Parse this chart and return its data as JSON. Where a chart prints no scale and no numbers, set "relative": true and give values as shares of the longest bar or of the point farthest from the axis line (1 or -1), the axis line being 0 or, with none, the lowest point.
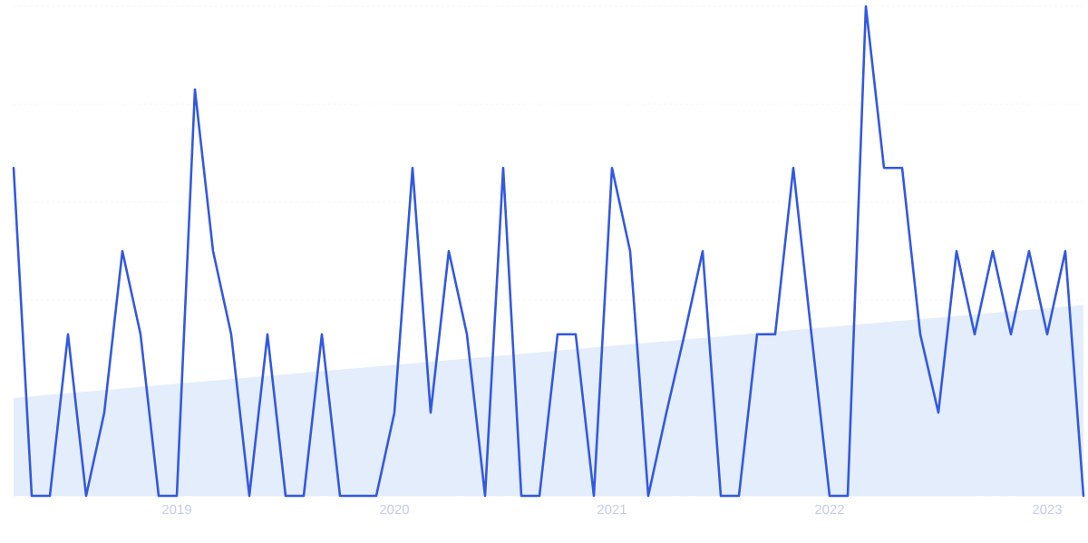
{
  "chart_data": {
    "type": "line",
    "relative": true,
    "grid": "y",
    "marker": "none",
    "line_style": "solid",
    "xlim": [
      "2018-04",
      "2023-03"
    ],
    "xticks": [
      {
        "value": "2019-01",
        "label": "2019"
      },
      {
        "value": "2020-01",
        "label": "2020"
      },
      {
        "value": "2021-01",
        "label": "2021"
      },
      {
        "value": "2022-01",
        "label": "2022"
      },
      {
        "value": "2023-01",
        "label": "2023"
      }
    ],
    "series": [
      {
        "type": "area",
        "color": "#e3edfb",
        "x": [
          "2018-04",
          "2023-03"
        ],
        "values": [
          0.2,
          0.39
        ]
      },
      {
        "color": "#3358e0",
        "x": [
          "2018-04",
          "2018-05",
          "2018-06",
          "2018-07",
          "2018-08",
          "2018-09",
          "2018-10",
          "2018-11",
          "2018-12",
          "2019-01",
          "2019-02",
          "2019-03",
          "2019-04",
          "2019-05",
          "2019-06",
          "2019-07",
          "2019-08",
          "2019-09",
          "2019-10",
          "2019-11",
          "2019-12",
          "2020-01",
          "2020-02",
          "2020-03",
          "2020-04",
          "2020-05",
          "2020-06",
          "2020-07",
          "2020-08",
          "2020-09",
          "2020-10",
          "2020-11",
          "2020-12",
          "2021-01",
          "2021-02",
          "2021-03",
          "2021-04",
          "2021-05",
          "2021-06",
          "2021-07",
          "2021-08",
          "2021-09",
          "2021-10",
          "2021-11",
          "2021-12",
          "2022-01",
          "2022-02",
          "2022-03",
          "2022-04",
          "2022-05",
          "2022-06",
          "2022-07",
          "2022-08",
          "2022-09",
          "2022-10",
          "2022-11",
          "2022-12",
          "2023-01",
          "2023-02",
          "2023-03"
        ],
        "values": [
          0.67,
          0,
          0,
          0.33,
          0,
          0.17,
          0.5,
          0.33,
          0,
          0,
          0.83,
          0.5,
          0.33,
          0,
          0.33,
          0,
          0,
          0.33,
          0,
          0,
          0,
          0.17,
          0.67,
          0.17,
          0.5,
          0.33,
          0,
          0.67,
          0,
          0,
          0.33,
          0.33,
          0,
          0.67,
          0.5,
          0,
          0.17,
          0.33,
          0.5,
          0,
          0,
          0.33,
          0.33,
          0.67,
          0.33,
          0,
          0,
          1,
          0.67,
          0.67,
          0.33,
          0.17,
          0.5,
          0.33,
          0.5,
          0.33,
          0.5,
          0.33,
          0.5,
          0
        ]
      }
    ]
  }
}
